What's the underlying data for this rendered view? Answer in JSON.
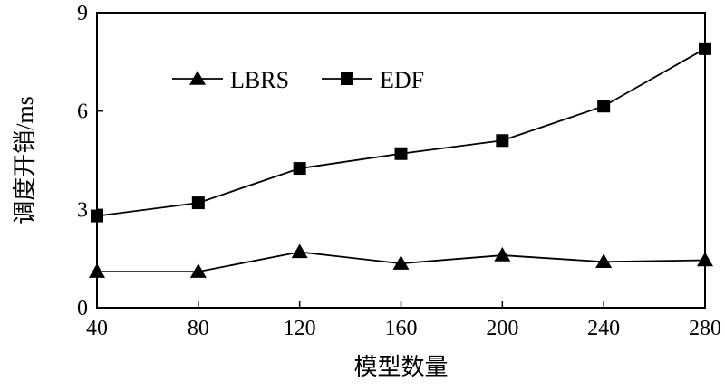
{
  "chart_data": {
    "type": "line",
    "xlabel": "模型数量",
    "ylabel": "调度开销/ms",
    "x": [
      40,
      80,
      120,
      160,
      200,
      240,
      280
    ],
    "xticks": [
      "40",
      "80",
      "120",
      "160",
      "200",
      "240",
      "280"
    ],
    "yticks": [
      "0",
      "3",
      "6",
      "9"
    ],
    "xlim": [
      40,
      280
    ],
    "ylim": [
      0,
      9
    ],
    "grid": false,
    "legend_position": "top-left",
    "series": [
      {
        "name": "LBRS",
        "marker": "triangle",
        "values": [
          1.1,
          1.1,
          1.7,
          1.35,
          1.6,
          1.4,
          1.45
        ]
      },
      {
        "name": "EDF",
        "marker": "square",
        "values": [
          2.8,
          3.2,
          4.25,
          4.7,
          5.1,
          6.15,
          7.9
        ]
      }
    ],
    "colors": {
      "line": "#000000"
    }
  }
}
